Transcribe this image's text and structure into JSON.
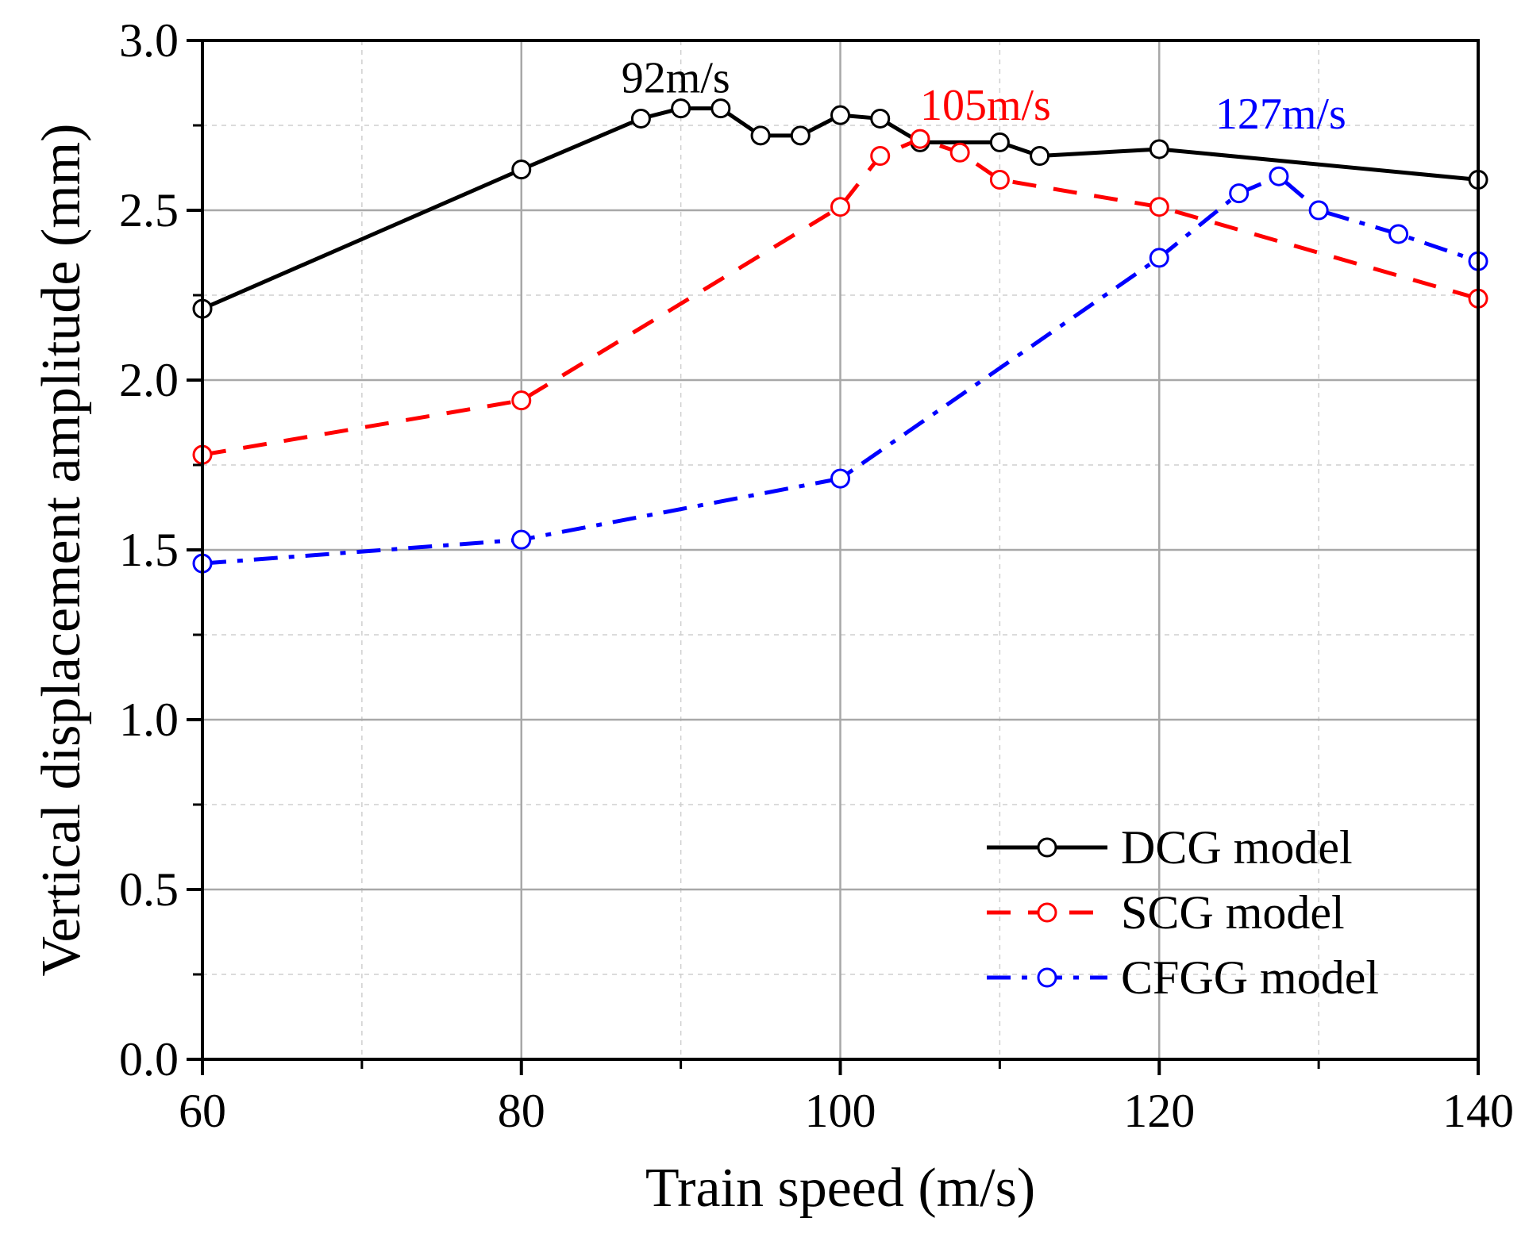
{
  "chart_data": {
    "type": "line",
    "title": "",
    "xlabel": "Train speed (m/s)",
    "ylabel": "Vertical displacement amplitude (mm)",
    "xlim": [
      60,
      140
    ],
    "ylim": [
      0.0,
      3.0
    ],
    "xticks": [
      60,
      80,
      100,
      120,
      140
    ],
    "xtick_labels": [
      "60",
      "80",
      "100",
      "120",
      "140"
    ],
    "yticks": [
      0.0,
      0.5,
      1.0,
      1.5,
      2.0,
      2.5,
      3.0
    ],
    "ytick_labels": [
      "0.0",
      "0.5",
      "1.0",
      "1.5",
      "2.0",
      "2.5",
      "3.0"
    ],
    "grid": true,
    "legend_position": "bottom-right",
    "series": [
      {
        "name": "DCG model",
        "color": "#000000",
        "dash": "solid",
        "x": [
          60,
          80,
          87.5,
          90,
          92.5,
          95,
          97.5,
          100,
          102.5,
          105,
          110,
          112.5,
          120,
          140
        ],
        "y": [
          2.21,
          2.62,
          2.77,
          2.8,
          2.8,
          2.72,
          2.72,
          2.78,
          2.77,
          2.7,
          2.7,
          2.66,
          2.68,
          2.59
        ]
      },
      {
        "name": "SCG model",
        "color": "#ff0000",
        "dash": "dash",
        "x": [
          60,
          80,
          100,
          102.5,
          105,
          107.5,
          110,
          120,
          140
        ],
        "y": [
          1.78,
          1.94,
          2.51,
          2.66,
          2.71,
          2.67,
          2.59,
          2.51,
          2.24
        ]
      },
      {
        "name": "CFGG model",
        "color": "#0000ff",
        "dash": "dashdot",
        "x": [
          60,
          80,
          100,
          120,
          125,
          127.5,
          130,
          135,
          140
        ],
        "y": [
          1.46,
          1.53,
          1.71,
          2.36,
          2.55,
          2.6,
          2.5,
          2.43,
          2.35
        ]
      }
    ],
    "annotations": [
      {
        "text": "92m/s",
        "x": 92,
        "y": 2.8,
        "color": "#000000"
      },
      {
        "text": "105m/s",
        "x": 105,
        "y": 2.72,
        "color": "#ff0000"
      },
      {
        "text": "127m/s",
        "x": 127,
        "y": 2.6,
        "color": "#0000ff"
      }
    ]
  }
}
